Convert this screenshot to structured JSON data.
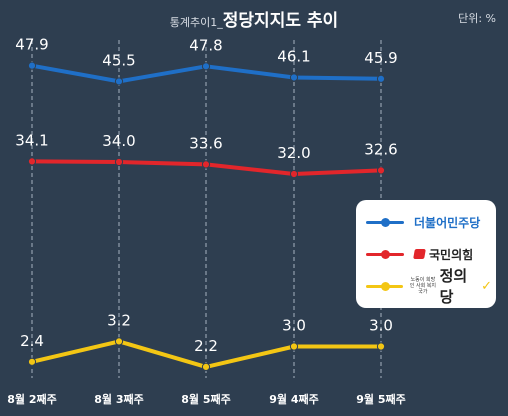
{
  "header": {
    "subtitle": "통계추이1_",
    "title": "정당지지도 추이",
    "unit": "단위: %"
  },
  "chart_data": {
    "type": "line",
    "categories": [
      "8월 2째주",
      "8월 3째주",
      "8월 5째주",
      "9월 4째주",
      "9월 5째주"
    ],
    "series": [
      {
        "name": "더불어민주당",
        "color": "#1f6fc7",
        "values": [
          47.9,
          45.5,
          47.8,
          46.1,
          45.9
        ]
      },
      {
        "name": "국민의힘",
        "color": "#e2262b",
        "values": [
          34.1,
          34.0,
          33.6,
          32.0,
          32.6
        ]
      },
      {
        "name": "정의당",
        "color": "#f3c614",
        "values": [
          2.4,
          3.2,
          2.2,
          3.0,
          3.0
        ]
      }
    ],
    "value_labels": [
      [
        "47.9",
        "45.5",
        "47.8",
        "46.1",
        "45.9"
      ],
      [
        "34.1",
        "34.0",
        "33.6",
        "32.0",
        "32.6"
      ],
      [
        "2.4",
        "3.2",
        "2.2",
        "3.0",
        "3.0"
      ]
    ],
    "grid": "vertical dashed",
    "legend_position": "right"
  },
  "legend": {
    "party1": "더불어민주당",
    "party2": "국민의힘",
    "party3": "정의당",
    "party3_slogan": "노동이 희망인 사회 복지국가",
    "colors": {
      "party1": "#1f6fc7",
      "party2": "#e2262b",
      "party3": "#f3c614"
    }
  }
}
